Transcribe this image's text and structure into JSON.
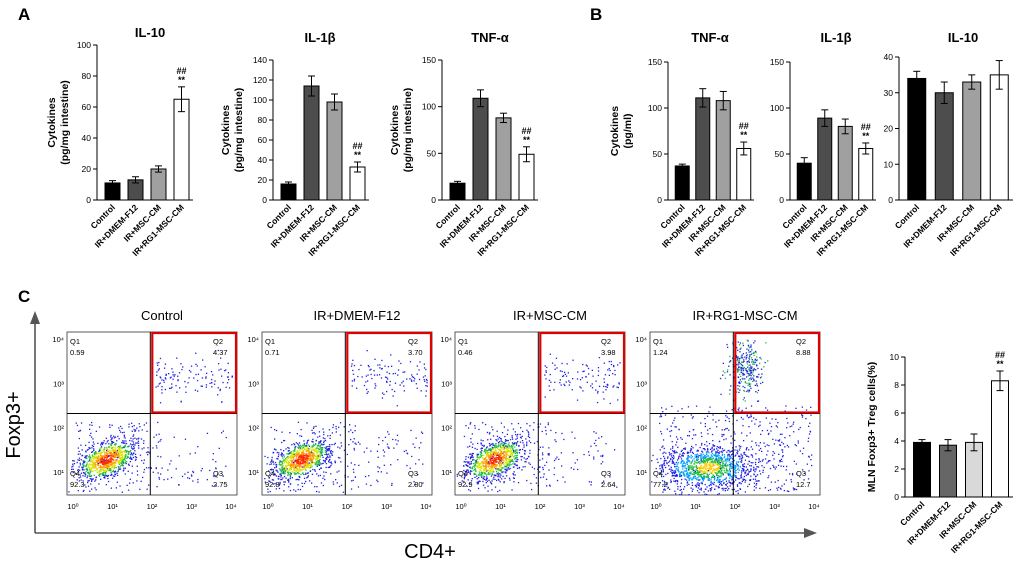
{
  "panels": {
    "A": "A",
    "B": "B",
    "C": "C"
  },
  "chart_data": [
    {
      "id": "A-IL10",
      "type": "bar",
      "title": "IL-10",
      "ylabel": [
        "Cytokines",
        "(pg/mg intestine)"
      ],
      "categories": [
        "Control",
        "IR+DMEM-F12",
        "IR+MSC-CM",
        "IR+RG1-MSC-CM"
      ],
      "values": [
        11,
        13,
        20,
        65
      ],
      "errors": [
        1.5,
        2,
        2,
        8
      ],
      "ylim": [
        0,
        100
      ],
      "yticks": [
        0,
        20,
        40,
        60,
        80,
        100
      ],
      "significance": [
        "",
        "",
        "",
        "##\n**"
      ],
      "colors": [
        "#000000",
        "#4d4d4d",
        "#a0a0a0",
        "#ffffff"
      ]
    },
    {
      "id": "A-IL1b",
      "type": "bar",
      "title": "IL-1β",
      "ylabel": [
        "Cytokines",
        "(pg/mg intestine)"
      ],
      "categories": [
        "Control",
        "IR+DMEM-F12",
        "IR+MSC-CM",
        "IR+RG1-MSC-CM"
      ],
      "values": [
        16,
        114,
        98,
        33
      ],
      "errors": [
        2,
        10,
        8,
        5
      ],
      "ylim": [
        0,
        140
      ],
      "yticks": [
        0,
        20,
        40,
        60,
        80,
        100,
        120,
        140
      ],
      "significance": [
        "",
        "",
        "",
        "##\n**"
      ],
      "colors": [
        "#000000",
        "#4d4d4d",
        "#a0a0a0",
        "#ffffff"
      ]
    },
    {
      "id": "A-TNFa",
      "type": "bar",
      "title": "TNF-α",
      "ylabel": [
        "Cytokines",
        "(pg/mg intestine)"
      ],
      "categories": [
        "Control",
        "IR+DMEM-F12",
        "IR+MSC-CM",
        "IR+RG1-MSC-CM"
      ],
      "values": [
        18,
        109,
        88,
        49
      ],
      "errors": [
        2,
        9,
        5,
        8
      ],
      "ylim": [
        0,
        150
      ],
      "yticks": [
        0,
        50,
        100,
        150
      ],
      "significance": [
        "",
        "",
        "",
        "##\n**"
      ],
      "colors": [
        "#000000",
        "#4d4d4d",
        "#a0a0a0",
        "#ffffff"
      ]
    },
    {
      "id": "B-TNFa",
      "type": "bar",
      "title": "TNF-α",
      "ylabel": [
        "Cytokines",
        "(pg/ml)"
      ],
      "categories": [
        "Control",
        "IR+DMEM-F12",
        "IR+MSC-CM",
        "IR+RG1-MSC-CM"
      ],
      "values": [
        37,
        111,
        108,
        56
      ],
      "errors": [
        2,
        10,
        10,
        7
      ],
      "ylim": [
        0,
        150
      ],
      "yticks": [
        0,
        50,
        100,
        150
      ],
      "significance": [
        "",
        "",
        "",
        "##\n**"
      ],
      "colors": [
        "#000000",
        "#4d4d4d",
        "#a0a0a0",
        "#ffffff"
      ]
    },
    {
      "id": "B-IL1b",
      "type": "bar",
      "title": "IL-1β",
      "ylabel": [],
      "categories": [
        "Control",
        "IR+DMEM-F12",
        "IR+MSC-CM",
        "IR+RG1-MSC-CM"
      ],
      "values": [
        40,
        89,
        80,
        56
      ],
      "errors": [
        6,
        9,
        8,
        6
      ],
      "ylim": [
        0,
        150
      ],
      "yticks": [
        0,
        50,
        100,
        150
      ],
      "significance": [
        "",
        "",
        "",
        "##\n**"
      ],
      "colors": [
        "#000000",
        "#4d4d4d",
        "#a0a0a0",
        "#ffffff"
      ]
    },
    {
      "id": "B-IL10",
      "type": "bar",
      "title": "IL-10",
      "ylabel": [],
      "categories": [
        "Control",
        "IR+DMEM-F12",
        "IR+MSC-CM",
        "IR+RG1-MSC-CM"
      ],
      "values": [
        34,
        30,
        33,
        35
      ],
      "errors": [
        2,
        3,
        2,
        4
      ],
      "ylim": [
        0,
        40
      ],
      "yticks": [
        0,
        10,
        20,
        30,
        40
      ],
      "significance": [
        "",
        "",
        "",
        ""
      ],
      "colors": [
        "#000000",
        "#4d4d4d",
        "#a0a0a0",
        "#ffffff"
      ]
    },
    {
      "id": "C-Treg",
      "type": "bar",
      "title": "",
      "ylabel": [
        "MLN Foxp3+ Treg cells(%)"
      ],
      "categories": [
        "Control",
        "IR+DMEM-F12",
        "IR+MSC-CM",
        "IR+RG1-MSC-CM"
      ],
      "values": [
        3.9,
        3.7,
        3.9,
        8.3
      ],
      "errors": [
        0.2,
        0.4,
        0.6,
        0.7
      ],
      "ylim": [
        0,
        10
      ],
      "yticks": [
        0,
        2,
        4,
        6,
        8,
        10
      ],
      "significance": [
        "",
        "",
        "",
        "##\n**"
      ],
      "colors": [
        "#000000",
        "#666666",
        "#d9d9d9",
        "#ffffff"
      ]
    },
    {
      "id": "C-flow",
      "type": "scatter",
      "xlabel": "CD4+",
      "ylabel": "Foxp3+",
      "xticks": [
        "10⁰",
        "10¹",
        "10²",
        "10³",
        "10⁴"
      ],
      "yticks": [
        "10¹",
        "10²",
        "10³",
        "10⁴"
      ],
      "plots": [
        {
          "title": "Control",
          "q1": "0.59",
          "q2": "4.37",
          "q3": "2.75",
          "q4": "92.3",
          "cloud": "tight"
        },
        {
          "title": "IR+DMEM-F12",
          "q1": "0.71",
          "q2": "3.70",
          "q3": "2.80",
          "q4": "92.8",
          "cloud": "tight"
        },
        {
          "title": "IR+MSC-CM",
          "q1": "0.46",
          "q2": "3.98",
          "q3": "2.64",
          "q4": "92.9",
          "cloud": "tight"
        },
        {
          "title": "IR+RG1-MSC-CM",
          "q1": "1.24",
          "q2": "8.88",
          "q3": "12.7",
          "q4": "77.2",
          "cloud": "spread"
        }
      ],
      "quadrant_names": [
        "Q1",
        "Q2",
        "Q3",
        "Q4"
      ]
    }
  ]
}
